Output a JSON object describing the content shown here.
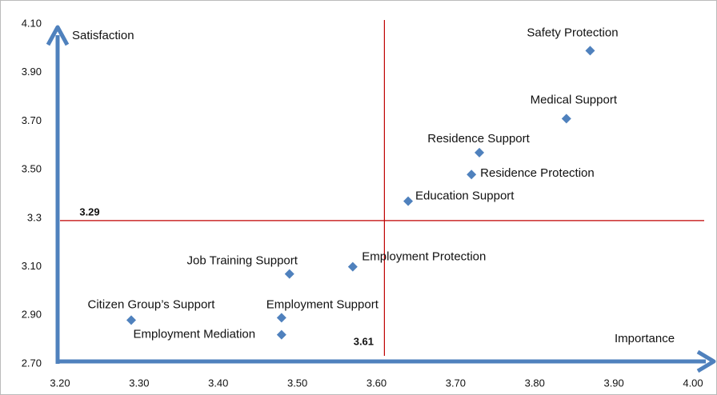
{
  "chart_data": {
    "type": "scatter",
    "xlabel": "Importance",
    "ylabel": "Satisfaction",
    "color": "#4f81bd",
    "xlim": [
      3.2,
      4.0
    ],
    "ylim": [
      2.7,
      4.1
    ],
    "xticks": [
      {
        "value": 3.2,
        "label": "3.20"
      },
      {
        "value": 3.3,
        "label": "3.30"
      },
      {
        "value": 3.4,
        "label": "3.40"
      },
      {
        "value": 3.5,
        "label": "3.50"
      },
      {
        "value": 3.6,
        "label": "3.60"
      },
      {
        "value": 3.7,
        "label": "3.70"
      },
      {
        "value": 3.8,
        "label": "3.80"
      },
      {
        "value": 3.9,
        "label": "3.90"
      },
      {
        "value": 4.0,
        "label": "4.00"
      }
    ],
    "yticks": [
      {
        "value": 2.7,
        "label": "2.70"
      },
      {
        "value": 2.9,
        "label": "2.90"
      },
      {
        "value": 3.1,
        "label": "3.10"
      },
      3.3,
      {
        "value": 3.5,
        "label": "3.50"
      },
      {
        "value": 3.7,
        "label": "3.70"
      },
      {
        "value": 3.9,
        "label": "3.90"
      },
      {
        "value": 4.1,
        "label": "4.10"
      }
    ],
    "reference_lines": {
      "x": {
        "value": 3.61,
        "label": "3.61",
        "color": "#c00000"
      },
      "y": {
        "value": 3.29,
        "label": "3.29",
        "color": "#c00000"
      }
    },
    "points": [
      {
        "label": "Safety Protection",
        "x": 3.87,
        "y": 3.99
      },
      {
        "label": "Medical Support",
        "x": 3.84,
        "y": 3.71
      },
      {
        "label": "Residence Support",
        "x": 3.73,
        "y": 3.57
      },
      {
        "label": "Residence Protection",
        "x": 3.72,
        "y": 3.48
      },
      {
        "label": "Education Support",
        "x": 3.64,
        "y": 3.37
      },
      {
        "label": "Employment Protection",
        "x": 3.57,
        "y": 3.1
      },
      {
        "label": "Job Training Support",
        "x": 3.49,
        "y": 3.07
      },
      {
        "label": "Citizen Group’s Support",
        "x": 3.29,
        "y": 2.88
      },
      {
        "label": "Employment Support",
        "x": 3.48,
        "y": 2.89
      },
      {
        "label": "Employment Mediation",
        "x": 3.48,
        "y": 2.82
      }
    ]
  }
}
